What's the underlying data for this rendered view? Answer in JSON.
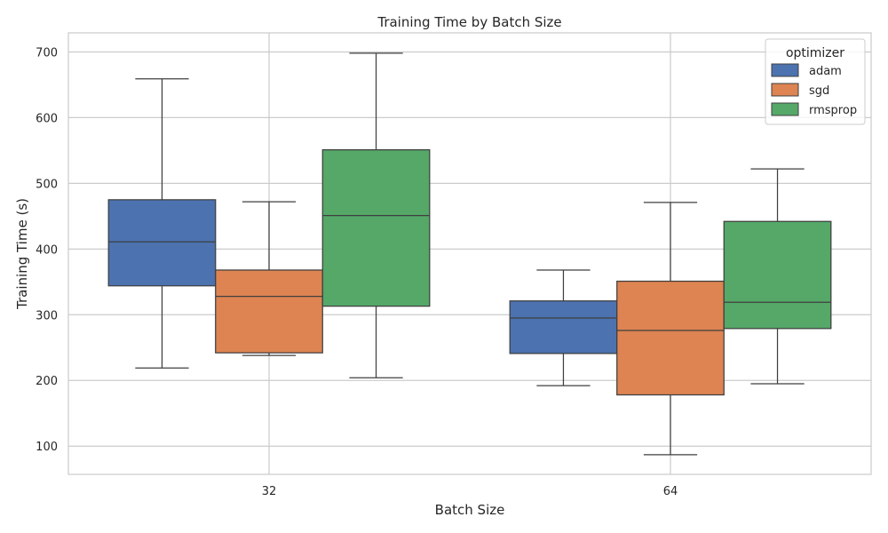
{
  "chart_data": {
    "type": "box",
    "title": "Training Time by Batch Size",
    "xlabel": "Batch Size",
    "ylabel": "Training Time (s)",
    "categories": [
      "32",
      "64"
    ],
    "ylim": [
      57,
      729
    ],
    "yticks": [
      100,
      200,
      300,
      400,
      500,
      600,
      700
    ],
    "grid": true,
    "legend": {
      "title": "optimizer",
      "placement": "top-right"
    },
    "series": [
      {
        "name": "adam",
        "color": "#4c72b0",
        "boxes": [
          {
            "min": 219,
            "q1": 344,
            "median": 411,
            "q3": 475,
            "max": 659
          },
          {
            "min": 192,
            "q1": 241,
            "median": 295,
            "q3": 321,
            "max": 368
          }
        ]
      },
      {
        "name": "sgd",
        "color": "#dd8452",
        "boxes": [
          {
            "min": 238,
            "q1": 242,
            "median": 328,
            "q3": 368,
            "max": 472
          },
          {
            "min": 87,
            "q1": 178,
            "median": 276,
            "q3": 351,
            "max": 471
          }
        ]
      },
      {
        "name": "rmsprop",
        "color": "#55a868",
        "boxes": [
          {
            "min": 204,
            "q1": 313,
            "median": 451,
            "q3": 551,
            "max": 698
          },
          {
            "min": 195,
            "q1": 279,
            "median": 319,
            "q3": 442,
            "max": 522
          }
        ]
      }
    ]
  }
}
